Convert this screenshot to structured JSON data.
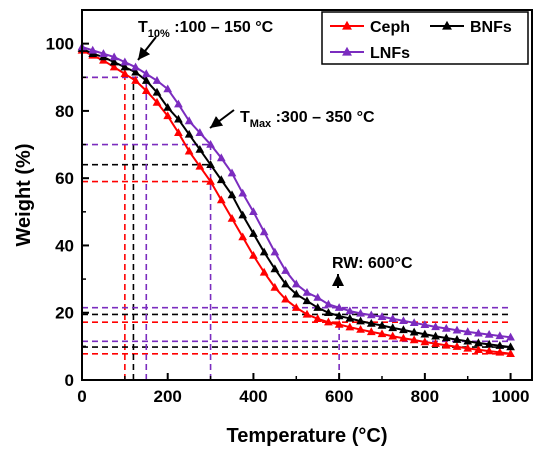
{
  "chart_data": {
    "type": "line",
    "xlabel": "Temperature (°C)",
    "ylabel": "Weight (%)",
    "xlim": [
      0,
      1050
    ],
    "ylim": [
      0,
      110
    ],
    "xticks": [
      0,
      200,
      400,
      600,
      800,
      1000
    ],
    "yticks": [
      0,
      20,
      40,
      60,
      80,
      100
    ],
    "tick_labels_x": [
      "0",
      "200",
      "400",
      "600",
      "800",
      "1000"
    ],
    "tick_labels_y": [
      "0",
      "20",
      "40",
      "60",
      "80",
      "100"
    ],
    "legend_position": "top-right",
    "series": [
      {
        "name": "Ceph",
        "color": "#ff0000",
        "marker": "triangle",
        "x": [
          0,
          25,
          50,
          75,
          100,
          125,
          150,
          175,
          200,
          225,
          250,
          275,
          300,
          325,
          350,
          375,
          400,
          425,
          450,
          475,
          500,
          525,
          550,
          575,
          600,
          625,
          650,
          675,
          700,
          725,
          750,
          775,
          800,
          825,
          850,
          875,
          900,
          925,
          950,
          975,
          1000
        ],
        "y": [
          98,
          96.5,
          95,
          93,
          91,
          89,
          86,
          82.5,
          78.5,
          73.5,
          68,
          63.5,
          59,
          53.5,
          48,
          42.5,
          37,
          32,
          27.5,
          24,
          21.5,
          19.5,
          18.2,
          17.2,
          16.5,
          15.7,
          15,
          14.3,
          13.7,
          13,
          12.4,
          11.9,
          11.3,
          10.8,
          10.3,
          9.9,
          9.4,
          9,
          8.6,
          8.2,
          7.8
        ]
      },
      {
        "name": "BNFs",
        "color": "#000000",
        "marker": "triangle",
        "x": [
          0,
          25,
          50,
          75,
          100,
          125,
          150,
          175,
          200,
          225,
          250,
          275,
          300,
          325,
          350,
          375,
          400,
          425,
          450,
          475,
          500,
          525,
          550,
          575,
          600,
          625,
          650,
          675,
          700,
          725,
          750,
          775,
          800,
          825,
          850,
          875,
          900,
          925,
          950,
          975,
          1000
        ],
        "y": [
          98.5,
          97,
          96,
          94.5,
          93,
          91.5,
          89,
          85.5,
          81,
          77.5,
          73,
          68.5,
          64,
          59.5,
          55,
          49,
          43.5,
          38,
          33,
          28.5,
          25.5,
          23.5,
          21.5,
          20,
          19,
          18.3,
          17.5,
          16.8,
          16.2,
          15.5,
          14.9,
          14.2,
          13.6,
          13,
          12.5,
          12,
          11.5,
          11,
          10.6,
          10.2,
          9.8
        ]
      },
      {
        "name": "LNFs",
        "color": "#7b2cbf",
        "marker": "triangle",
        "x": [
          0,
          25,
          50,
          75,
          100,
          125,
          150,
          175,
          200,
          225,
          250,
          275,
          300,
          325,
          350,
          375,
          400,
          425,
          450,
          475,
          500,
          525,
          550,
          575,
          600,
          625,
          650,
          675,
          700,
          725,
          750,
          775,
          800,
          825,
          850,
          875,
          900,
          925,
          950,
          975,
          1000
        ],
        "y": [
          99,
          98,
          97,
          96,
          94.5,
          93,
          91,
          89,
          86.5,
          82,
          77,
          73.5,
          70,
          66,
          61.5,
          55.5,
          50,
          44,
          38,
          32.5,
          28.5,
          26,
          24.5,
          22.5,
          21.5,
          20.5,
          19.8,
          19.3,
          18.8,
          18.2,
          17.6,
          17,
          16.4,
          15.8,
          15.3,
          14.8,
          14.3,
          13.9,
          13.5,
          13.1,
          12.7
        ]
      }
    ],
    "reference_lines": [
      {
        "color": "#ff0000",
        "kind": "h",
        "value": 90,
        "xmax": 100
      },
      {
        "color": "#ff0000",
        "kind": "h",
        "value": 59,
        "xmax": 300
      },
      {
        "color": "#ff0000",
        "kind": "h",
        "value": 17.2,
        "xmax": 1000
      },
      {
        "color": "#ff0000",
        "kind": "h",
        "value": 7.8,
        "xmax": 1000
      },
      {
        "color": "#ff0000",
        "kind": "v",
        "value": 100,
        "ymax": 90
      },
      {
        "color": "#000000",
        "kind": "h",
        "value": 64,
        "xmax": 300
      },
      {
        "color": "#000000",
        "kind": "h",
        "value": 19.5,
        "xmax": 1000
      },
      {
        "color": "#000000",
        "kind": "h",
        "value": 9.8,
        "xmax": 1000
      },
      {
        "color": "#000000",
        "kind": "v",
        "value": 120,
        "ymax": 90
      },
      {
        "color": "#7b2cbf",
        "kind": "h",
        "value": 90,
        "xmax": 150
      },
      {
        "color": "#7b2cbf",
        "kind": "h",
        "value": 70,
        "xmax": 300
      },
      {
        "color": "#7b2cbf",
        "kind": "h",
        "value": 21.5,
        "xmax": 1000
      },
      {
        "color": "#7b2cbf",
        "kind": "h",
        "value": 11.5,
        "xmax": 1000
      },
      {
        "color": "#7b2cbf",
        "kind": "v",
        "value": 150,
        "ymax": 90
      },
      {
        "color": "#7b2cbf",
        "kind": "v",
        "value": 300,
        "ymax": 70
      },
      {
        "color": "#7b2cbf",
        "kind": "v",
        "value": 600,
        "ymax": 21.5
      }
    ],
    "annotations": [
      {
        "id": "t10",
        "main": "T",
        "sub": "10%",
        "rest": " :100 – 150 °C"
      },
      {
        "id": "tmax",
        "main": "T",
        "sub": "Max",
        "rest": " :300 – 350 °C"
      },
      {
        "id": "rw",
        "main": "RW: 600°C",
        "sub": "",
        "rest": ""
      }
    ]
  }
}
